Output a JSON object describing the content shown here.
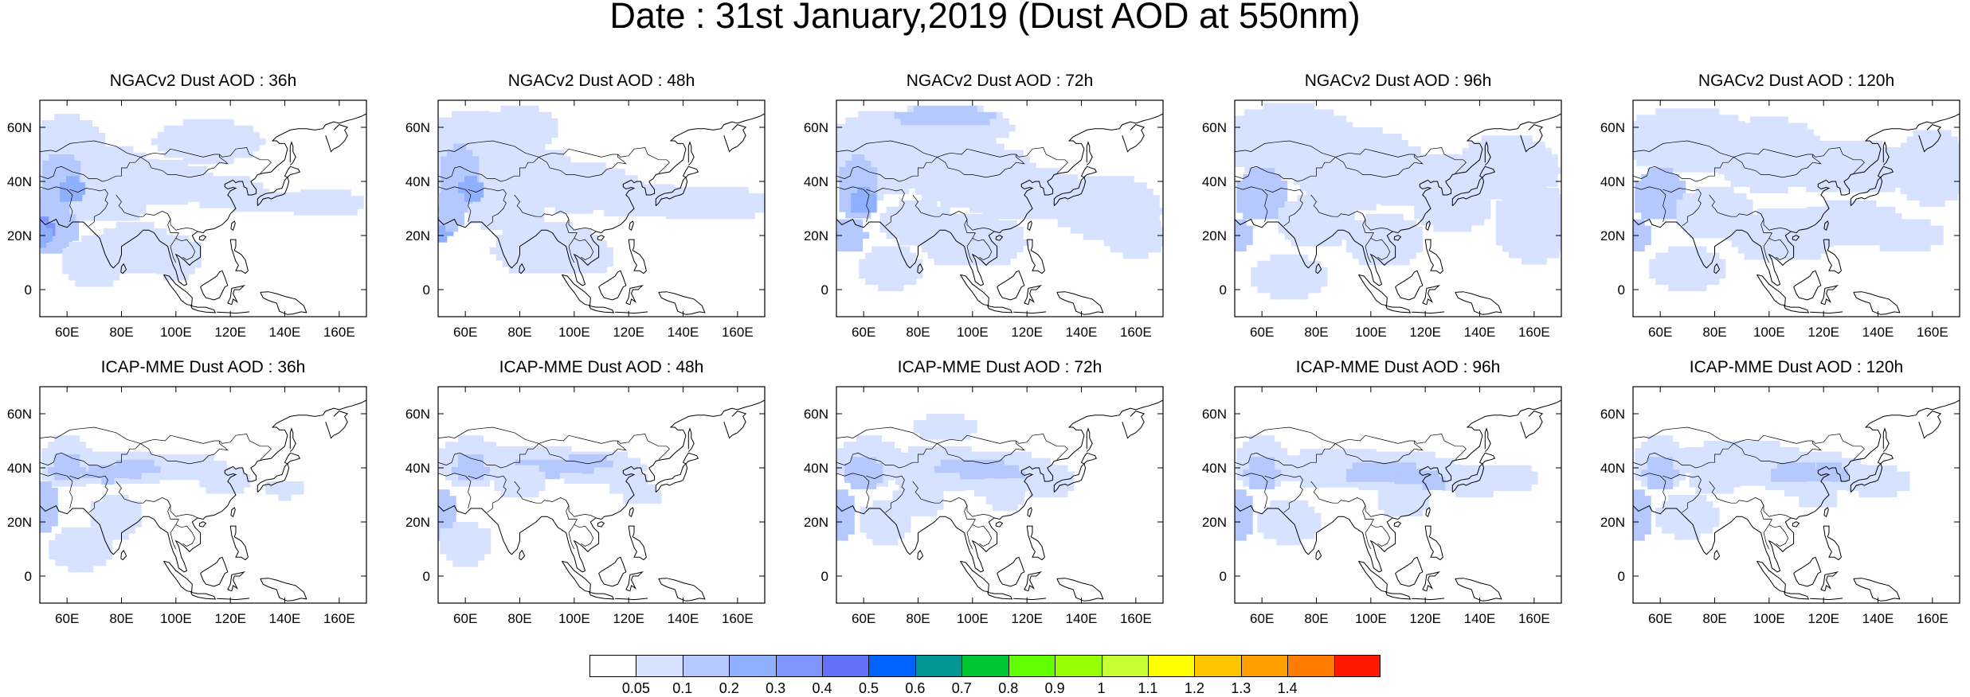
{
  "title": "Date : 31st January,2019 (Dust AOD at 550nm)",
  "map": {
    "x_ticks": [
      "60E",
      "80E",
      "100E",
      "120E",
      "140E",
      "160E"
    ],
    "y_ticks": [
      "60N",
      "40N",
      "20N",
      "0"
    ],
    "lon_range": [
      50,
      170
    ],
    "lat_range": [
      -10,
      70
    ]
  },
  "panels": [
    {
      "title": "NGACv2 Dust AOD : 36h",
      "model": "NGACv2",
      "forecast_hour": 36
    },
    {
      "title": "NGACv2 Dust AOD : 48h",
      "model": "NGACv2",
      "forecast_hour": 48
    },
    {
      "title": "NGACv2 Dust AOD : 72h",
      "model": "NGACv2",
      "forecast_hour": 72
    },
    {
      "title": "NGACv2 Dust AOD : 96h",
      "model": "NGACv2",
      "forecast_hour": 96
    },
    {
      "title": "NGACv2 Dust AOD : 120h",
      "model": "NGACv2",
      "forecast_hour": 120
    },
    {
      "title": "ICAP-MME Dust AOD : 36h",
      "model": "ICAP-MME",
      "forecast_hour": 36
    },
    {
      "title": "ICAP-MME Dust AOD : 48h",
      "model": "ICAP-MME",
      "forecast_hour": 48
    },
    {
      "title": "ICAP-MME Dust AOD : 72h",
      "model": "ICAP-MME",
      "forecast_hour": 72
    },
    {
      "title": "ICAP-MME Dust AOD : 96h",
      "model": "ICAP-MME",
      "forecast_hour": 96
    },
    {
      "title": "ICAP-MME Dust AOD : 120h",
      "model": "ICAP-MME",
      "forecast_hour": 120
    }
  ],
  "colorbar": {
    "labels": [
      "0.05",
      "0.1",
      "0.2",
      "0.3",
      "0.4",
      "0.5",
      "0.6",
      "0.7",
      "0.8",
      "0.9",
      "1",
      "1.1",
      "1.2",
      "1.3",
      "1.4"
    ],
    "colors": [
      "#ffffff",
      "#d6e2ff",
      "#b5c9ff",
      "#8fb0ff",
      "#7f96ff",
      "#6370f8",
      "#0063ff",
      "#009696",
      "#00c633",
      "#63ff00",
      "#96ff00",
      "#c6ff33",
      "#ffff00",
      "#ffc600",
      "#ffa000",
      "#ff7c00",
      "#ff1900"
    ]
  }
}
